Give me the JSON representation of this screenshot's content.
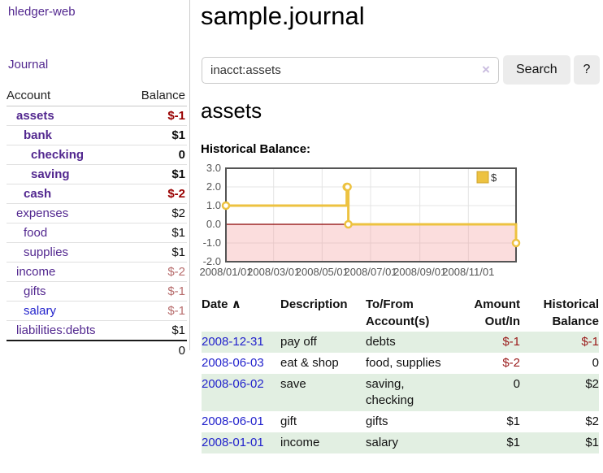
{
  "app": {
    "title": "hledger-web"
  },
  "sidebar": {
    "journal_link": "Journal",
    "table": {
      "headers": {
        "account": "Account",
        "balance": "Balance"
      },
      "rows": [
        {
          "account": "assets",
          "balance": "$-1"
        },
        {
          "account": "bank",
          "balance": "$1"
        },
        {
          "account": "checking",
          "balance": "0"
        },
        {
          "account": "saving",
          "balance": "$1"
        },
        {
          "account": "cash",
          "balance": "$-2"
        },
        {
          "account": "expenses",
          "balance": "$2"
        },
        {
          "account": "food",
          "balance": "$1"
        },
        {
          "account": "supplies",
          "balance": "$1"
        },
        {
          "account": "income",
          "balance": "$-2"
        },
        {
          "account": "gifts",
          "balance": "$-1"
        },
        {
          "account": "salary",
          "balance": "$-1"
        },
        {
          "account": "liabilities:debts",
          "balance": "$1"
        }
      ],
      "total": "0"
    }
  },
  "main": {
    "title": "sample.journal",
    "search": {
      "value": "inacct:assets",
      "clear_icon": "×",
      "button_label": "Search",
      "help_label": "?"
    },
    "account_heading": "assets",
    "chart_title": "Historical Balance:"
  },
  "chart_data": {
    "type": "line",
    "step": true,
    "title": "Historical Balance:",
    "series": [
      {
        "name": "$",
        "color": "#edc240",
        "points": [
          {
            "date": "2008-01-01",
            "value": 1
          },
          {
            "date": "2008-06-01",
            "value": 2
          },
          {
            "date": "2008-06-02",
            "value": 2
          },
          {
            "date": "2008-06-03",
            "value": 0
          },
          {
            "date": "2008-12-31",
            "value": -1
          }
        ]
      }
    ],
    "xlim": [
      "2008-01-01",
      "2008-12-31"
    ],
    "ylim": [
      -2,
      3
    ],
    "yticks": [
      "3.0",
      "2.0",
      "1.0",
      "0.0",
      "-1.0",
      "-2.0"
    ],
    "xticks": [
      "2008/01/01",
      "2008/03/01",
      "2008/05/01",
      "2008/07/01",
      "2008/09/01",
      "2008/11/01"
    ],
    "legend_position": "top-right",
    "grid": true,
    "colors": {
      "grid": "#e4e4e4",
      "border": "#545454",
      "zero_line": "#8b0000",
      "negative_fill": "rgba(244,150,150,0.32)",
      "tick_text": "#555555"
    }
  },
  "transactions": {
    "headers": {
      "date": "Date",
      "sort_icon": "∧",
      "description": "Description",
      "account": "To/From Account(s)",
      "amount": "Amount Out/In",
      "balance": "Historical Balance"
    },
    "rows": [
      {
        "date": "2008-12-31",
        "description": "pay off",
        "account": "debts",
        "amount": "$-1",
        "balance": "$-1"
      },
      {
        "date": "2008-06-03",
        "description": "eat & shop",
        "account": "food, supplies",
        "amount": "$-2",
        "balance": "0"
      },
      {
        "date": "2008-06-02",
        "description": "save",
        "account": "saving, checking",
        "amount": "0",
        "balance": "$2"
      },
      {
        "date": "2008-06-01",
        "description": "gift",
        "account": "gifts",
        "amount": "$1",
        "balance": "$2"
      },
      {
        "date": "2008-01-01",
        "description": "income",
        "account": "salary",
        "amount": "$1",
        "balance": "$1"
      }
    ]
  }
}
